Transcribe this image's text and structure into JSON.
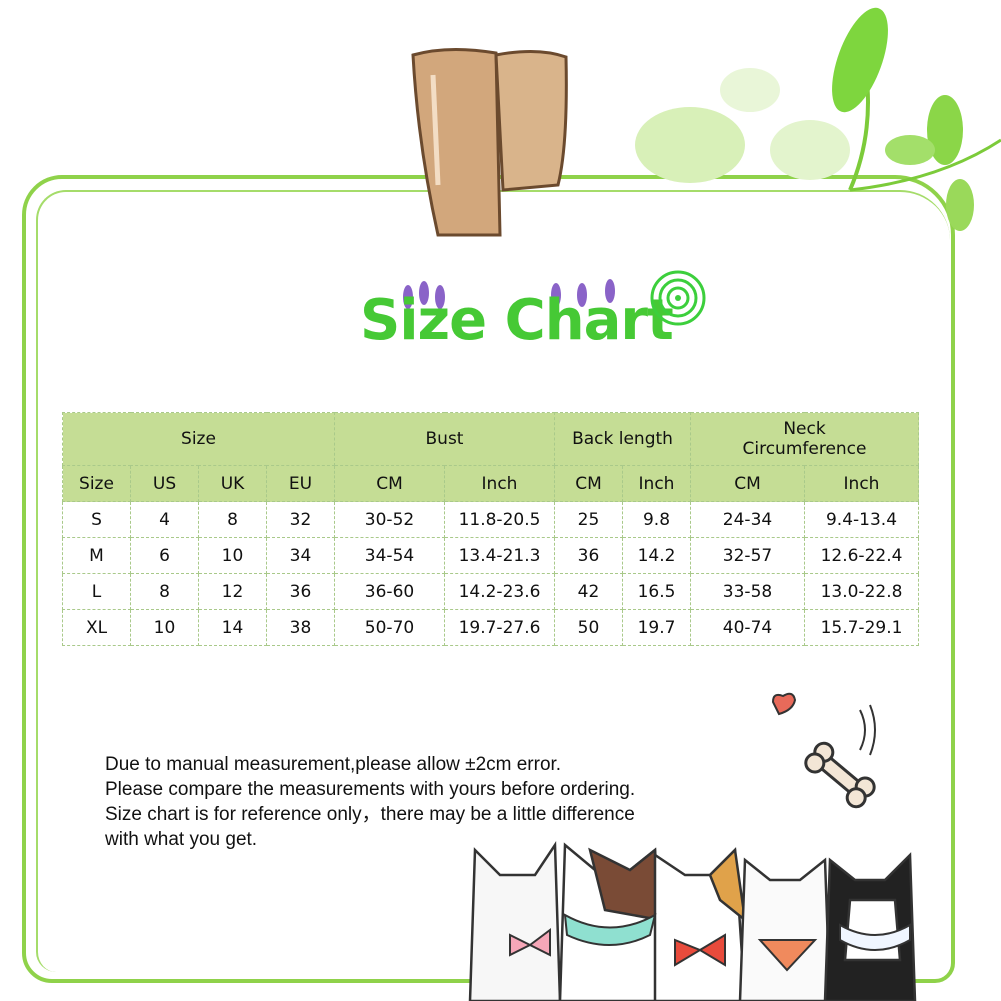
{
  "title": "Size Chart",
  "table": {
    "groups": [
      "Size",
      "Bust",
      "Back length",
      "Neck Circumference"
    ],
    "neck_line1": "Neck",
    "neck_line2": "Circumference",
    "columns": [
      "Size",
      "US",
      "UK",
      "EU",
      "CM",
      "Inch",
      "CM",
      "Inch",
      "CM",
      "Inch"
    ],
    "rows": [
      [
        "S",
        "4",
        "8",
        "32",
        "30-52",
        "11.8-20.5",
        "25",
        "9.8",
        "24-34",
        "9.4-13.4"
      ],
      [
        "M",
        "6",
        "10",
        "34",
        "34-54",
        "13.4-21.3",
        "36",
        "14.2",
        "32-57",
        "12.6-22.4"
      ],
      [
        "L",
        "8",
        "12",
        "36",
        "36-60",
        "14.2-23.6",
        "42",
        "16.5",
        "33-58",
        "13.0-22.8"
      ],
      [
        "XL",
        "10",
        "14",
        "38",
        "50-70",
        "19.7-27.6",
        "50",
        "19.7",
        "40-74",
        "15.7-29.1"
      ]
    ]
  },
  "notes": [
    "Due to manual measurement,please allow ±2cm error.",
    "Please compare the measurements with yours before ordering.",
    "Size chart is for reference only，there may be a little difference",
    "with what you get."
  ],
  "colors": {
    "accent": "#46c935",
    "header_bg": "#c5dd95",
    "frame": "#8fd24a"
  },
  "icons": [
    "clip-icon",
    "leaves-icon",
    "spiral-icon",
    "heart-icon",
    "bone-icon",
    "cats-illustration"
  ]
}
